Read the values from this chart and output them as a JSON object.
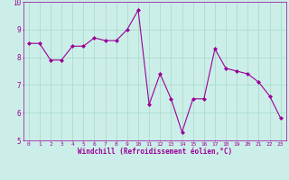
{
  "x": [
    0,
    1,
    2,
    3,
    4,
    5,
    6,
    7,
    8,
    9,
    10,
    11,
    12,
    13,
    14,
    15,
    16,
    17,
    18,
    19,
    20,
    21,
    22,
    23
  ],
  "y": [
    8.5,
    8.5,
    7.9,
    7.9,
    8.4,
    8.4,
    8.7,
    8.6,
    8.6,
    9.0,
    9.7,
    6.3,
    7.4,
    6.5,
    5.3,
    6.5,
    6.5,
    8.3,
    7.6,
    7.5,
    7.4,
    7.1,
    6.6,
    5.8
  ],
  "line_color": "#990099",
  "marker": "D",
  "marker_size": 2,
  "bg_color": "#cceee8",
  "xlabel": "Windchill (Refroidissement éolien,°C)",
  "xlabel_color": "#990099",
  "tick_color": "#990099",
  "ylim": [
    5,
    10
  ],
  "xlim": [
    -0.5,
    23.5
  ],
  "yticks": [
    5,
    6,
    7,
    8,
    9,
    10
  ],
  "xticks": [
    0,
    1,
    2,
    3,
    4,
    5,
    6,
    7,
    8,
    9,
    10,
    11,
    12,
    13,
    14,
    15,
    16,
    17,
    18,
    19,
    20,
    21,
    22,
    23
  ],
  "grid_color": "#aaddcc",
  "grid_lw": 0.6
}
